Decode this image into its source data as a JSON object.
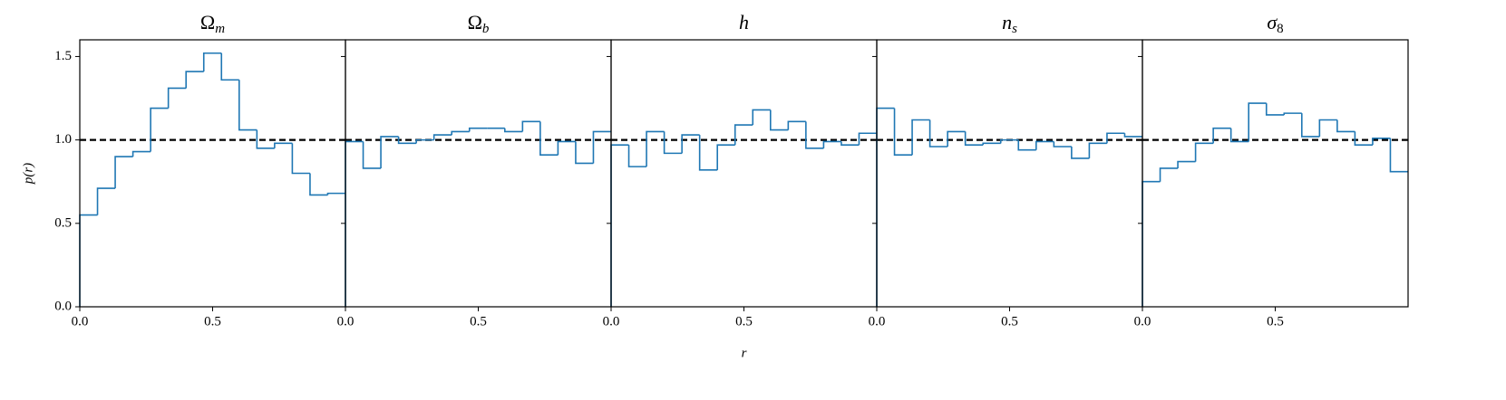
{
  "chart_data": [
    {
      "type": "histogram",
      "title": "Ω",
      "title_subscript": "m",
      "ylabel": "p(r)",
      "color": "#1f77b4",
      "bins": [
        0,
        0.0667,
        0.1333,
        0.2,
        0.2667,
        0.3333,
        0.4,
        0.4667,
        0.5333,
        0.6,
        0.6667,
        0.7333,
        0.8,
        0.8667,
        0.9333,
        1
      ],
      "values": [
        0.55,
        0.71,
        0.9,
        0.93,
        1.19,
        1.31,
        1.41,
        1.52,
        1.36,
        1.06,
        0.95,
        0.98,
        0.8,
        0.67,
        0.68
      ],
      "hline": 1,
      "xlim": [
        0,
        1
      ],
      "ylim": [
        0,
        1.6
      ],
      "xticks": [
        {
          "value": 0,
          "label": "0.0"
        },
        0.5
      ],
      "yticks": [
        {
          "value": 0,
          "label": "0.0"
        },
        0.5,
        {
          "value": 1,
          "label": "1.0"
        },
        1.5
      ]
    },
    {
      "type": "histogram",
      "title": "Ω",
      "title_subscript": "b",
      "color": "#1f77b4",
      "bins": [
        0,
        0.0667,
        0.1333,
        0.2,
        0.2667,
        0.3333,
        0.4,
        0.4667,
        0.5333,
        0.6,
        0.6667,
        0.7333,
        0.8,
        0.8667,
        0.9333,
        1
      ],
      "values": [
        0.99,
        0.83,
        1.02,
        0.98,
        1.0,
        1.03,
        1.05,
        1.07,
        1.07,
        1.05,
        1.11,
        0.91,
        0.99,
        0.86,
        1.05
      ],
      "hline": 1,
      "xlim": [
        0,
        1
      ],
      "ylim": [
        0,
        1.6
      ],
      "xticks": [
        {
          "value": 0,
          "label": "0.0"
        },
        0.5
      ]
    },
    {
      "type": "histogram",
      "title": "h",
      "xlabel": "r",
      "color": "#1f77b4",
      "bins": [
        0,
        0.0667,
        0.1333,
        0.2,
        0.2667,
        0.3333,
        0.4,
        0.4667,
        0.5333,
        0.6,
        0.6667,
        0.7333,
        0.8,
        0.8667,
        0.9333,
        1
      ],
      "values": [
        0.97,
        0.84,
        1.05,
        0.92,
        1.03,
        0.82,
        0.97,
        1.09,
        1.18,
        1.06,
        1.11,
        0.95,
        0.99,
        0.97,
        1.04
      ],
      "hline": 1,
      "xlim": [
        0,
        1
      ],
      "ylim": [
        0,
        1.6
      ],
      "xticks": [
        {
          "value": 0,
          "label": "0.0"
        },
        0.5
      ]
    },
    {
      "type": "histogram",
      "title": "n",
      "title_subscript": "s",
      "color": "#1f77b4",
      "bins": [
        0,
        0.0667,
        0.1333,
        0.2,
        0.2667,
        0.3333,
        0.4,
        0.4667,
        0.5333,
        0.6,
        0.6667,
        0.7333,
        0.8,
        0.8667,
        0.9333,
        1
      ],
      "values": [
        1.19,
        0.91,
        1.12,
        0.96,
        1.05,
        0.97,
        0.98,
        1.0,
        0.94,
        0.99,
        0.96,
        0.89,
        0.98,
        1.04,
        1.02
      ],
      "hline": 1,
      "xlim": [
        0,
        1
      ],
      "ylim": [
        0,
        1.6
      ],
      "xticks": [
        {
          "value": 0,
          "label": "0.0"
        },
        0.5
      ]
    },
    {
      "type": "histogram",
      "title": "σ",
      "title_subscript": "8",
      "color": "#1f77b4",
      "bins": [
        0,
        0.0667,
        0.1333,
        0.2,
        0.2667,
        0.3333,
        0.4,
        0.4667,
        0.5333,
        0.6,
        0.6667,
        0.7333,
        0.8,
        0.8667,
        0.9333,
        1
      ],
      "values": [
        0.75,
        0.83,
        0.87,
        0.98,
        1.07,
        0.99,
        1.22,
        1.15,
        1.16,
        1.02,
        1.12,
        1.05,
        0.97,
        1.01,
        0.81
      ],
      "hline": 1,
      "xlim": [
        0,
        1
      ],
      "ylim": [
        0,
        1.6
      ],
      "xticks": [
        {
          "value": 0,
          "label": "0.0"
        },
        0.5
      ]
    }
  ]
}
